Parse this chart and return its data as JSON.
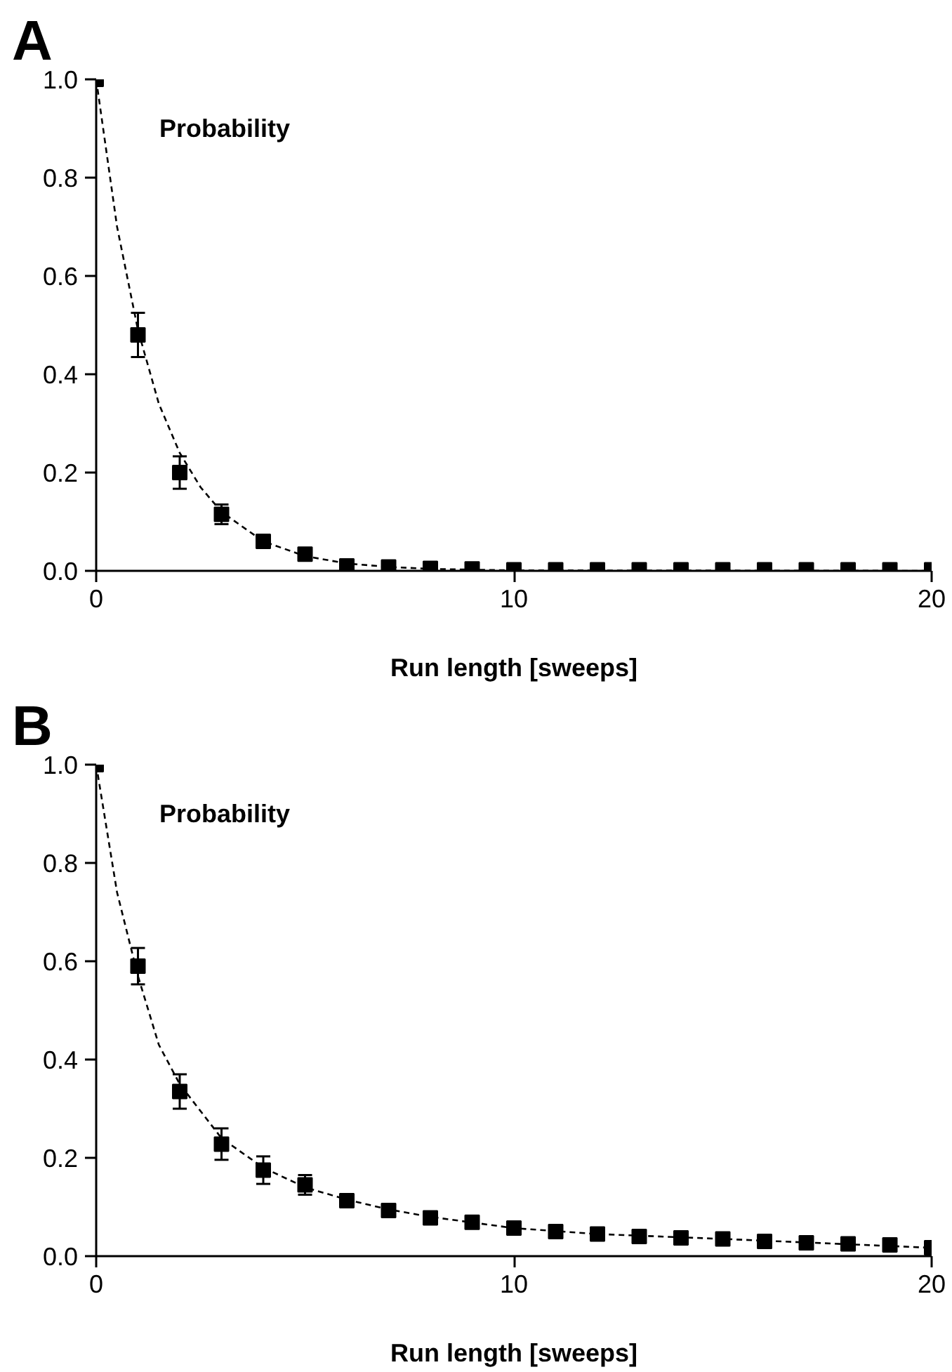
{
  "chart_data": [
    {
      "type": "scatter",
      "title": "A",
      "xlabel": "Run length [sweeps]",
      "ylabel": "Probability",
      "xlim": [
        0,
        20
      ],
      "ylim": [
        0,
        1
      ],
      "xticks": [
        0,
        10,
        20
      ],
      "yticks": [
        {
          "value": 0,
          "label": "0.0"
        },
        {
          "value": 0.2,
          "label": "0.2"
        },
        {
          "value": 0.4,
          "label": "0.4"
        },
        {
          "value": 0.6,
          "label": "0.6"
        },
        {
          "value": 0.8,
          "label": "0.8"
        },
        {
          "value": 1,
          "label": "1.0"
        }
      ],
      "grid": false,
      "series": [
        {
          "marker": "square",
          "color": "#000000",
          "x": [
            0,
            1,
            2,
            3,
            4,
            5,
            6,
            7,
            8,
            9,
            10,
            11,
            12,
            13,
            14,
            15,
            16,
            17,
            18,
            19,
            20
          ],
          "values": [
            1.0,
            0.48,
            0.2,
            0.115,
            0.06,
            0.034,
            0.01,
            0.008,
            0.005,
            0.004,
            0.002,
            0.002,
            0.002,
            0.002,
            0.002,
            0.002,
            0.002,
            0.002,
            0.002,
            0.002,
            0.002
          ],
          "errors": [
            null,
            0.045,
            0.033,
            0.02,
            null,
            null,
            null,
            null,
            null,
            null,
            null,
            null,
            null,
            null,
            null,
            null,
            null,
            null,
            null,
            null,
            null
          ]
        },
        {
          "type": "line",
          "line_style": "dashed",
          "color": "#000000",
          "x": [
            0,
            0.5,
            1,
            1.5,
            2,
            2.5,
            3,
            4,
            5,
            6,
            7,
            8,
            10,
            20
          ],
          "values": [
            1.0,
            0.7,
            0.49,
            0.34,
            0.24,
            0.17,
            0.12,
            0.06,
            0.03,
            0.015,
            0.008,
            0.004,
            0.001,
            0.0
          ]
        }
      ]
    },
    {
      "type": "scatter",
      "title": "B",
      "xlabel": "Run length [sweeps]",
      "ylabel": "Probability",
      "xlim": [
        0,
        20
      ],
      "ylim": [
        0,
        1
      ],
      "xticks": [
        0,
        10,
        20
      ],
      "yticks": [
        {
          "value": 0,
          "label": "0.0"
        },
        {
          "value": 0.2,
          "label": "0.2"
        },
        {
          "value": 0.4,
          "label": "0.4"
        },
        {
          "value": 0.6,
          "label": "0.6"
        },
        {
          "value": 0.8,
          "label": "0.8"
        },
        {
          "value": 1,
          "label": "1.0"
        }
      ],
      "grid": false,
      "series": [
        {
          "marker": "square",
          "color": "#000000",
          "x": [
            0,
            1,
            2,
            3,
            4,
            5,
            6,
            7,
            8,
            9,
            10,
            11,
            12,
            13,
            14,
            15,
            16,
            17,
            18,
            19,
            20
          ],
          "values": [
            1.0,
            0.59,
            0.335,
            0.228,
            0.175,
            0.145,
            0.113,
            0.093,
            0.078,
            0.069,
            0.057,
            0.05,
            0.045,
            0.04,
            0.037,
            0.035,
            0.03,
            0.027,
            0.025,
            0.023,
            0.017
          ],
          "errors": [
            null,
            0.037,
            0.035,
            0.032,
            0.028,
            0.02,
            0.013,
            0.01,
            0.01,
            null,
            null,
            null,
            null,
            null,
            null,
            null,
            null,
            null,
            null,
            null,
            null
          ]
        },
        {
          "type": "line",
          "line_style": "dashed",
          "color": "#000000",
          "x": [
            0,
            0.5,
            1,
            1.5,
            2,
            3,
            4,
            5,
            6,
            7,
            8,
            10,
            12,
            15,
            20
          ],
          "values": [
            1.0,
            0.74,
            0.57,
            0.43,
            0.35,
            0.24,
            0.18,
            0.14,
            0.115,
            0.095,
            0.08,
            0.057,
            0.045,
            0.035,
            0.017
          ]
        }
      ]
    }
  ]
}
